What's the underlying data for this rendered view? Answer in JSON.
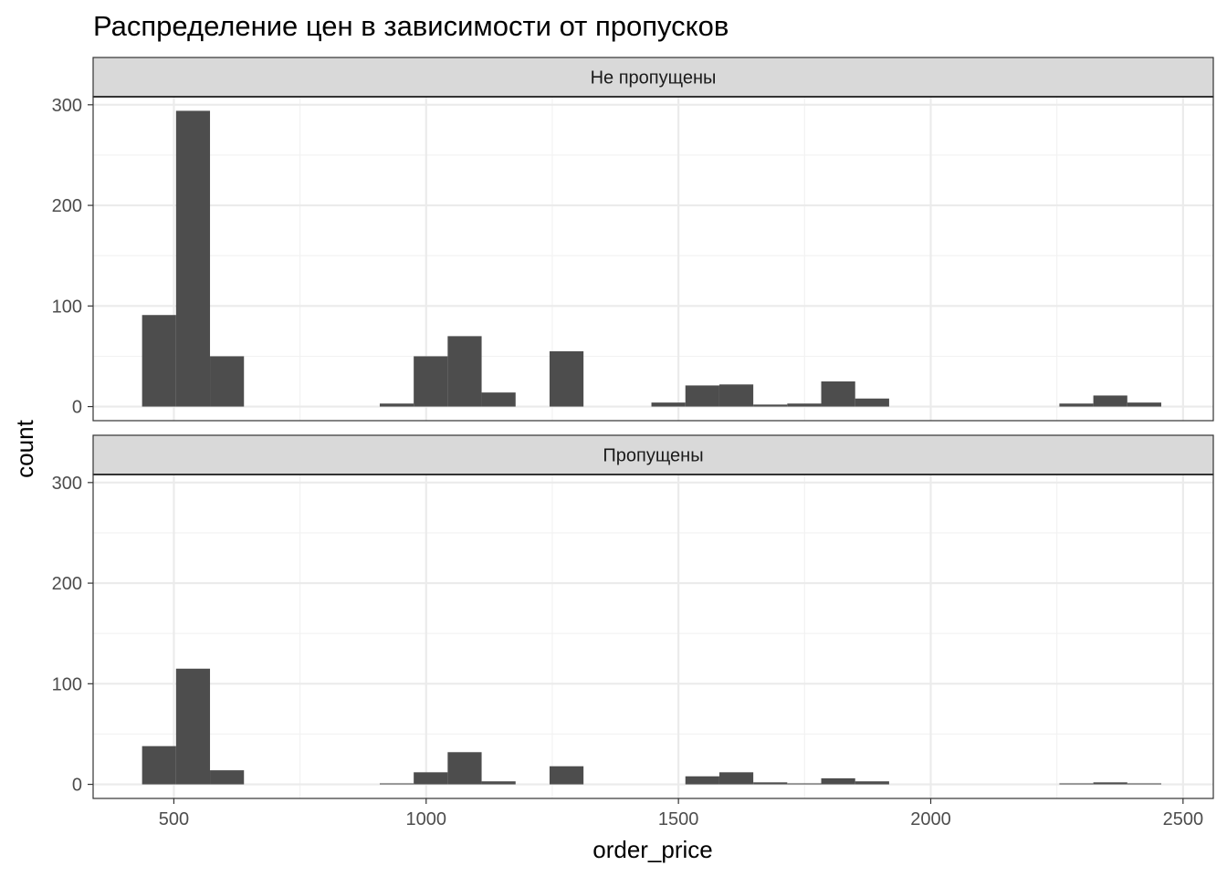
{
  "chart_data": {
    "type": "bar",
    "title": "Распределение цен в зависимости от пропусков",
    "xlabel": "order_price",
    "ylabel": "count",
    "xlim": [
      340,
      2560
    ],
    "ylim": [
      -14,
      308
    ],
    "x_ticks": [
      500,
      1000,
      1500,
      2000,
      2500
    ],
    "y_ticks": [
      0,
      100,
      200,
      300
    ],
    "bin_width": 67.3,
    "bar_color": "#4d4d4d",
    "grid": true,
    "theme": "bw",
    "bin_centers": [
      470.7,
      538.0,
      605.3,
      941.7,
      1009.0,
      1076.3,
      1143.6,
      1278.2,
      1480.1,
      1547.4,
      1614.7,
      1682.0,
      1749.3,
      1816.6,
      1883.9,
      2288.6,
      2355.9,
      2423.2
    ],
    "facets": [
      {
        "label": "Не пропущены",
        "values": [
          91,
          294,
          50,
          3,
          50,
          70,
          14,
          55,
          4,
          21,
          22,
          2,
          3,
          25,
          8,
          3,
          11,
          4
        ]
      },
      {
        "label": "Пропущены",
        "values": [
          38,
          115,
          14,
          1,
          12,
          32,
          3,
          18,
          0,
          8,
          12,
          2,
          1,
          6,
          3,
          1,
          2,
          1
        ]
      }
    ]
  }
}
